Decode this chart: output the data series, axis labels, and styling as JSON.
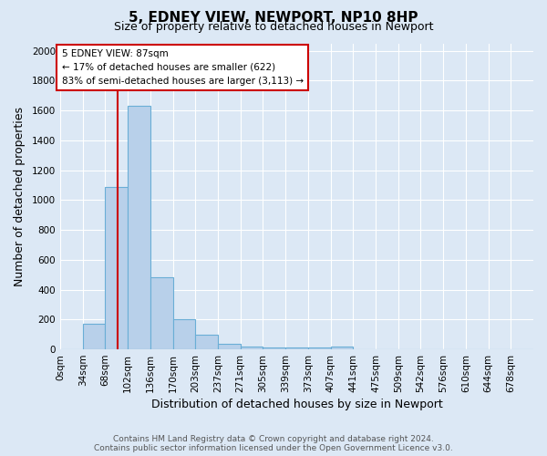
{
  "title": "5, EDNEY VIEW, NEWPORT, NP10 8HP",
  "subtitle": "Size of property relative to detached houses in Newport",
  "xlabel": "Distribution of detached houses by size in Newport",
  "ylabel": "Number of detached properties",
  "bar_labels": [
    "0sqm",
    "34sqm",
    "68sqm",
    "102sqm",
    "136sqm",
    "170sqm",
    "203sqm",
    "237sqm",
    "271sqm",
    "305sqm",
    "339sqm",
    "373sqm",
    "407sqm",
    "441sqm",
    "475sqm",
    "509sqm",
    "542sqm",
    "576sqm",
    "610sqm",
    "644sqm",
    "678sqm"
  ],
  "bar_values": [
    0,
    170,
    1090,
    1630,
    480,
    200,
    100,
    40,
    20,
    10,
    10,
    10,
    20,
    0,
    0,
    0,
    0,
    0,
    0,
    0,
    0
  ],
  "bar_color": "#b8d0ea",
  "bar_edge_color": "#6aaed6",
  "fig_bg_color": "#dce8f5",
  "ax_bg_color": "#dce8f5",
  "grid_color": "#ffffff",
  "annotation_text": "5 EDNEY VIEW: 87sqm\n← 17% of detached houses are smaller (622)\n83% of semi-detached houses are larger (3,113) →",
  "annotation_box_facecolor": "#ffffff",
  "annotation_box_edgecolor": "#cc0000",
  "vline_x": 87,
  "vline_color": "#cc0000",
  "ylim": [
    0,
    2050
  ],
  "bin_width": 34,
  "n_bins": 21,
  "footer": "Contains HM Land Registry data © Crown copyright and database right 2024.\nContains public sector information licensed under the Open Government Licence v3.0.",
  "title_fontsize": 11,
  "subtitle_fontsize": 9,
  "xlabel_fontsize": 9,
  "ylabel_fontsize": 9,
  "tick_fontsize": 7.5,
  "footer_fontsize": 6.5
}
